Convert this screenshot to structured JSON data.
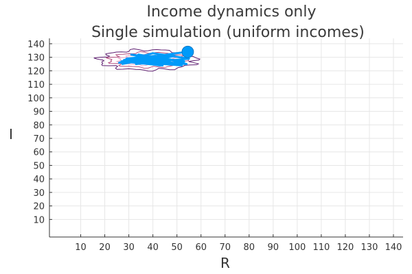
{
  "chart_data": {
    "type": "line",
    "title": "Income dynamics only",
    "subtitle": "Single simulation (uniform incomes)",
    "xlabel": "R",
    "ylabel": "I",
    "xlim": [
      -3,
      144
    ],
    "ylim": [
      -3,
      144
    ],
    "xticks": [
      10,
      20,
      30,
      40,
      50,
      60,
      70,
      80,
      90,
      100,
      110,
      120,
      130,
      140
    ],
    "yticks": [
      10,
      20,
      30,
      40,
      50,
      60,
      70,
      80,
      90,
      100,
      110,
      120,
      130,
      140
    ],
    "grid": true,
    "legend": "none",
    "colors": {
      "trajectory": "#009af9",
      "contour_outer": "#5b1a6e",
      "contour_inner": "#e7a6c8",
      "contour_mid": "#b34a7c"
    },
    "series": [
      {
        "x": [
          27,
          45,
          30,
          52,
          34,
          47,
          26,
          40,
          55,
          33,
          49,
          28,
          43,
          37,
          53,
          31,
          46,
          29,
          41,
          54,
          35,
          48,
          27,
          44,
          38,
          54
        ],
        "y": [
          125,
          131,
          127,
          124,
          132,
          128,
          126,
          133,
          129,
          125,
          131,
          128,
          124,
          130,
          127,
          132,
          126,
          129,
          131,
          125,
          128,
          132,
          127,
          124,
          130,
          134
        ]
      }
    ],
    "endpoint": {
      "x": 54.5,
      "y": 134
    },
    "contours": [
      {
        "cx": 38,
        "cy": 128,
        "rx": 20,
        "ry": 7.5
      },
      {
        "cx": 38,
        "cy": 128,
        "rx": 16,
        "ry": 5.5
      },
      {
        "cx": 38,
        "cy": 128,
        "rx": 12,
        "ry": 3.8
      }
    ]
  }
}
